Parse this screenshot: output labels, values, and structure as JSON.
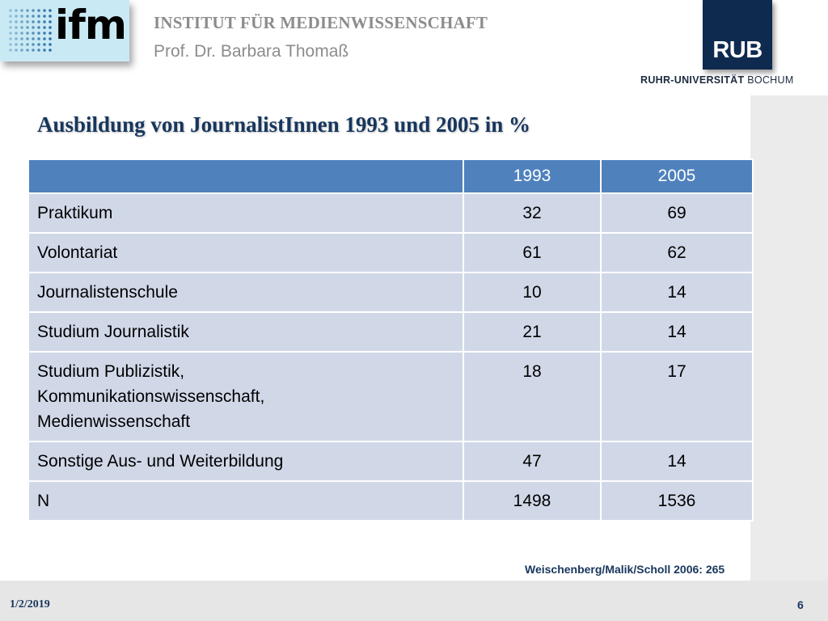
{
  "header": {
    "logo_text": "ifm",
    "institute": "INSTITUT FÜR MEDIENWISSENSCHAFT",
    "professor": "Prof. Dr. Barbara Thomaß",
    "university_logo": "RUB",
    "university_name_bold": "RUHR-UNIVERSITÄT",
    "university_name_rest": " BOCHUM"
  },
  "slide": {
    "title": "Ausbildung von JournalistInnen 1993 und 2005 in %"
  },
  "table": {
    "headers": [
      "",
      "1993",
      "2005"
    ],
    "rows": [
      {
        "label": "Praktikum",
        "v1993": "32",
        "v2005": "69"
      },
      {
        "label": "Volontariat",
        "v1993": "61",
        "v2005": "62"
      },
      {
        "label": "Journalistenschule",
        "v1993": "10",
        "v2005": "14"
      },
      {
        "label": "Studium Journalistik",
        "v1993": "21",
        "v2005": "14"
      },
      {
        "label": "Studium Publizistik,\nKommunikationswissenschaft,\nMedienwissenschaft",
        "v1993": "18",
        "v2005": "17"
      },
      {
        "label": "Sonstige Aus- und Weiterbildung",
        "v1993": "47",
        "v2005": "14"
      },
      {
        "label": "N",
        "v1993": "1498",
        "v2005": "1536"
      }
    ]
  },
  "source": "Weischenberg/Malik/Scholl 2006: 265",
  "footer": {
    "date": "1/2/2019",
    "page": "6"
  },
  "colors": {
    "header_fill": "#4f81bd",
    "row_fill": "#d0d8e8",
    "title_color": "#17365d",
    "rub_blue": "#0e2a4f",
    "ifm_bg": "#c9eaf4"
  },
  "icons": {
    "ifm_logo": "dot-grid-logo",
    "rub_logo": "rub-square-logo"
  }
}
